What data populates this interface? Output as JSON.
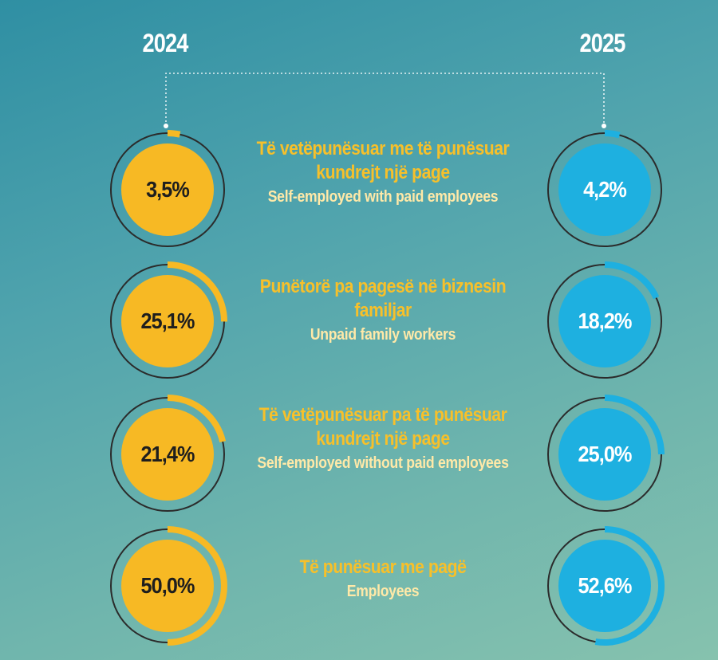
{
  "chart_data": {
    "type": "donut",
    "title": "",
    "series": [
      {
        "name": "2024",
        "color": "#f7b924",
        "values": [
          3.5,
          25.1,
          21.4,
          50.0
        ]
      },
      {
        "name": "2025",
        "color": "#1eb0e0",
        "values": [
          4.2,
          18.2,
          25.0,
          52.6
        ]
      }
    ],
    "categories": [
      {
        "sq": "Të vetëpunësuar me të punësuar kundrejt një page",
        "en": "Self-employed  with paid employees"
      },
      {
        "sq": "Punëtorë pa pagesë në biznesin familjar",
        "en": "Unpaid family workers"
      },
      {
        "sq": "Të vetëpunësuar pa të punësuar kundrejt një page",
        "en": "Self-employed  without paid employees"
      },
      {
        "sq": "Të punësuar me pagë",
        "en": "Employees"
      }
    ],
    "value_labels": {
      "2024": [
        "3,5%",
        "25,1%",
        "21,4%",
        "50,0%"
      ],
      "2025": [
        "4,2%",
        "18,2%",
        "25,0%",
        "52,6%"
      ]
    },
    "ring_track_color": "#2b2b2b"
  }
}
